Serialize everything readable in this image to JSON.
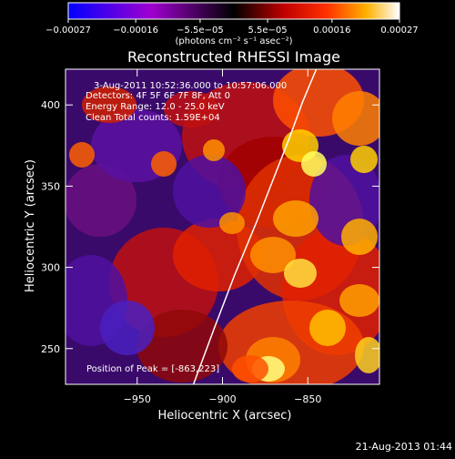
{
  "chart_data": {
    "type": "heatmap",
    "title": "Reconstructed RHESSI Image",
    "xlabel": "Heliocentric X (arcsec)",
    "ylabel": "Heliocentric Y (arcsec)",
    "xlim": [
      -992,
      -808
    ],
    "ylim": [
      228,
      422
    ],
    "x_ticks": [
      -950,
      -900,
      -850
    ],
    "x_tick_labels": [
      "−950",
      "−900",
      "−850"
    ],
    "y_ticks": [
      250,
      300,
      350,
      400
    ],
    "y_tick_labels": [
      "250",
      "300",
      "350",
      "400"
    ],
    "colorbar": {
      "range": [
        -0.00027,
        0.00027
      ],
      "tick_values": [
        -0.00027,
        -0.00016,
        -5.5e-05,
        5.5e-05,
        0.00016,
        0.00027
      ],
      "tick_labels": [
        "−0.00027",
        "−0.00016",
        "−5.5e−05",
        "5.5e−05",
        "0.00016",
        "0.00027"
      ],
      "units_text": "(photons cm⁻² s⁻¹ asec⁻²)"
    },
    "annotations": {
      "time_range": "3-Aug-2011 10:52:36.000 to 10:57:06.000",
      "detectors": "Detectors: 4F 5F 6F 7F 8F, Att 0",
      "energy": "Energy Range: 12.0 - 25.0 keV",
      "clean": "Clean     Total counts: 1.59E+04",
      "peak": "Position of Peak = [-863,223]"
    },
    "limb_curve": {
      "x": [
        -917,
        -905,
        -893,
        -880,
        -870,
        -861,
        -853,
        -845
      ],
      "y": [
        228,
        262,
        295,
        328,
        355,
        379,
        402,
        422
      ]
    },
    "colors": {
      "low": "#0000ff",
      "mid_low": "#a000d0",
      "zero": "#000000",
      "mid_high": "#ff2000",
      "high": "#ffff40",
      "top": "#ffffff"
    }
  },
  "footer": {
    "date": "21-Aug-2013 01:44"
  }
}
